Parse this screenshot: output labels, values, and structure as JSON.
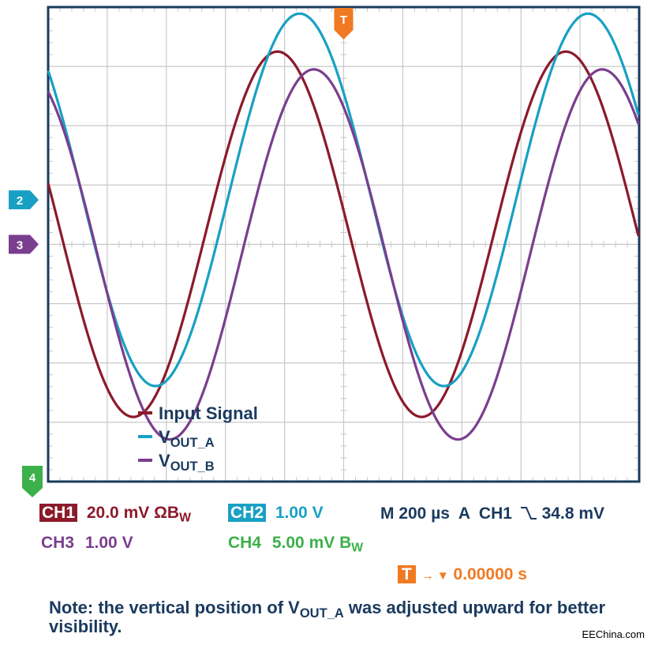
{
  "colors": {
    "ch1": "#8b1a2b",
    "ch2": "#18a0c4",
    "ch3": "#7a3e8e",
    "ch4": "#3cb04a",
    "trigger": "#f07a22",
    "text": "#1a3a5e",
    "grid": "#c8c8c8",
    "frame": "#1a3a5e"
  },
  "chart_data": {
    "type": "line",
    "grid": true,
    "x": {
      "unit": "µs",
      "range": [
        -1000,
        1000
      ],
      "divisions": 10,
      "per_div": 200
    },
    "y": {
      "divisions": 8
    },
    "series": [
      {
        "name": "Input Signal",
        "channel": "CH1",
        "color": "#8b1a2b",
        "amplitude_div": 3.08,
        "center_div": 0.17,
        "period_us": 976,
        "zero_cross_time_us": 20,
        "phase": "trigger_falling"
      },
      {
        "name": "VOUT_A",
        "channel": "CH2",
        "color": "#18a0c4",
        "amplitude_div": 3.14,
        "center_div": 0.75,
        "period_us": 976,
        "zero_cross_time_us": 95,
        "phase": "lagging"
      },
      {
        "name": "VOUT_B",
        "channel": "CH3",
        "color": "#7a3e8e",
        "amplitude_div": 3.12,
        "center_div": -0.17,
        "period_us": 976,
        "zero_cross_time_us": -345,
        "phase": "inverted"
      }
    ],
    "markers": {
      "trigger_label": "T",
      "ch2_label": "2",
      "ch3_label": "3",
      "ch4_label": "4"
    }
  },
  "legend": [
    {
      "label": "Input Signal"
    },
    {
      "label_main": "V",
      "label_sub": "OUT_A"
    },
    {
      "label_main": "V",
      "label_sub": "OUT_B"
    }
  ],
  "readouts": {
    "ch1_badge": "CH1",
    "ch1_value": "20.0 mV ΩB",
    "ch1_sub": "W",
    "ch2_badge": "CH2",
    "ch2_value": "1.00 V",
    "timebase": "M 200 µs  A  CH1",
    "trigger_level": "34.8 mV",
    "ch3_label": "CH3",
    "ch3_value": "1.00 V",
    "ch4_label": "CH4",
    "ch4_value": "5.00 mV B",
    "ch4_sub": "W",
    "trigger_badge": "T",
    "trigger_arrow": "→ ▼",
    "trigger_time": "0.00000 s"
  },
  "note": {
    "prefix": "Note: the vertical position of V",
    "sub": "OUT_A",
    "suffix": " was adjusted upward for better visibility."
  },
  "watermark": "EEChina.com"
}
